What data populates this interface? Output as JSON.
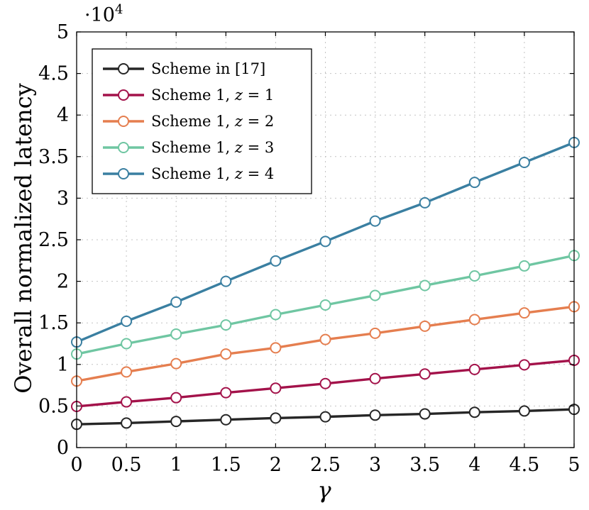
{
  "chart_data": {
    "type": "line",
    "xlabel": "γ",
    "ylabel": "Overall normalized latency",
    "y_scale_label": "·10",
    "y_scale_exponent": "4",
    "xlim": [
      0,
      5
    ],
    "ylim": [
      0,
      50000
    ],
    "x_ticks": [
      "0",
      "0.5",
      "1",
      "1.5",
      "2",
      "2.5",
      "3",
      "3.5",
      "4",
      "4.5",
      "5"
    ],
    "y_ticks": [
      "0",
      "0.5",
      "1",
      "1.5",
      "2",
      "2.5",
      "3",
      "3.5",
      "4",
      "4.5",
      "5"
    ],
    "x": [
      0,
      0.5,
      1,
      1.5,
      2,
      2.5,
      3,
      3.5,
      4,
      4.5,
      5
    ],
    "grid": true,
    "legend_position": "top-left",
    "series": [
      {
        "name": "Scheme in [17]",
        "color": "#262626",
        "values": [
          2800,
          2950,
          3150,
          3350,
          3550,
          3700,
          3900,
          4050,
          4250,
          4400,
          4600
        ]
      },
      {
        "name": "Scheme 1, z = 1",
        "color": "#a3124a",
        "values": [
          4950,
          5500,
          6000,
          6600,
          7150,
          7700,
          8300,
          8850,
          9400,
          9950,
          10500
        ]
      },
      {
        "name": "Scheme 1, z = 2",
        "color": "#e57e4f",
        "values": [
          8000,
          9100,
          10100,
          11250,
          12000,
          13000,
          13750,
          14600,
          15400,
          16200,
          16950
        ]
      },
      {
        "name": "Scheme 1, z = 3",
        "color": "#6fc6a2",
        "values": [
          11250,
          12500,
          13650,
          14750,
          16000,
          17150,
          18300,
          19500,
          20650,
          21850,
          23100
        ]
      },
      {
        "name": "Scheme 1, z = 4",
        "color": "#3a7fa1",
        "values": [
          12700,
          15200,
          17500,
          20000,
          22450,
          24800,
          27250,
          29450,
          31900,
          34300,
          36700
        ]
      }
    ]
  }
}
